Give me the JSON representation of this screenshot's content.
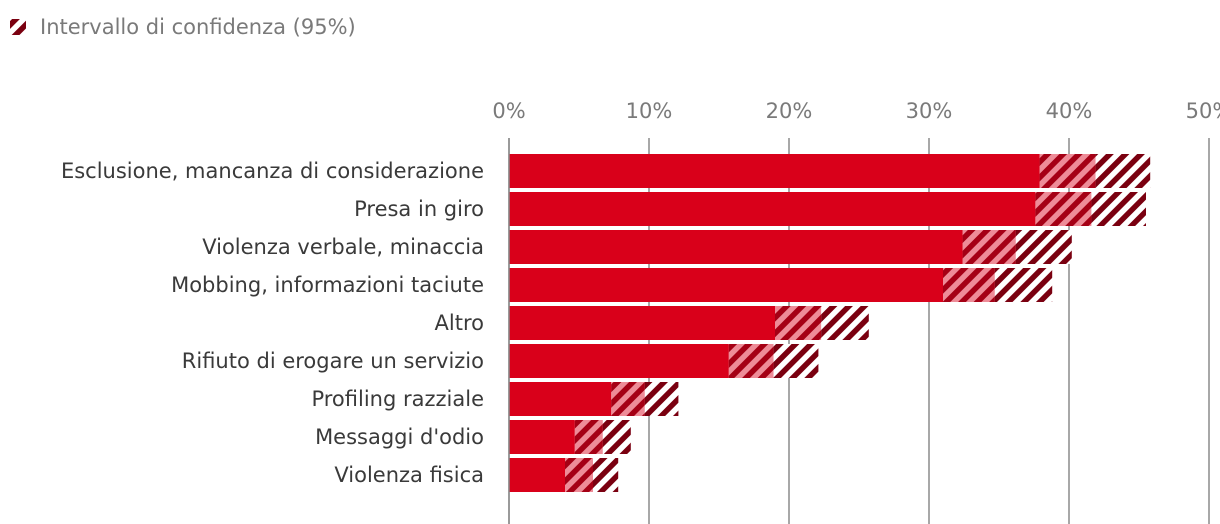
{
  "legend": {
    "ci_label": "Intervallo di confidenza (95%)"
  },
  "colors": {
    "bar": "#d9001a",
    "ci_stripe": "#7a0010",
    "grid": "#8c8c8c",
    "background": "#ffffff"
  },
  "chart_data": {
    "type": "bar",
    "orientation": "horizontal",
    "title": "",
    "xlabel": "",
    "ylabel": "",
    "xlim": [
      0,
      50
    ],
    "ticks": [
      0,
      10,
      20,
      30,
      40,
      50
    ],
    "tick_labels": [
      "0%",
      "10%",
      "20%",
      "30%",
      "40%",
      "50%"
    ],
    "categories": [
      "Esclusione, mancanza di considerazione",
      "Presa in giro",
      "Violenza verbale, minaccia",
      "Mobbing, informazioni taciute",
      "Altro",
      "Rifiuto di erogare un servizio",
      "Profiling razziale",
      "Messaggi d'odio",
      "Violenza fisica"
    ],
    "values": [
      41.9,
      41.6,
      36.2,
      34.7,
      22.3,
      18.9,
      9.7,
      6.7,
      6.0
    ],
    "ci_low": [
      37.9,
      37.6,
      32.4,
      31.0,
      19.0,
      15.7,
      7.3,
      4.7,
      4.0
    ],
    "ci_high": [
      45.8,
      45.5,
      40.2,
      38.8,
      25.7,
      22.1,
      12.1,
      8.7,
      7.8
    ],
    "legend": [
      "Intervallo di confidenza (95%)"
    ],
    "grid": true
  }
}
